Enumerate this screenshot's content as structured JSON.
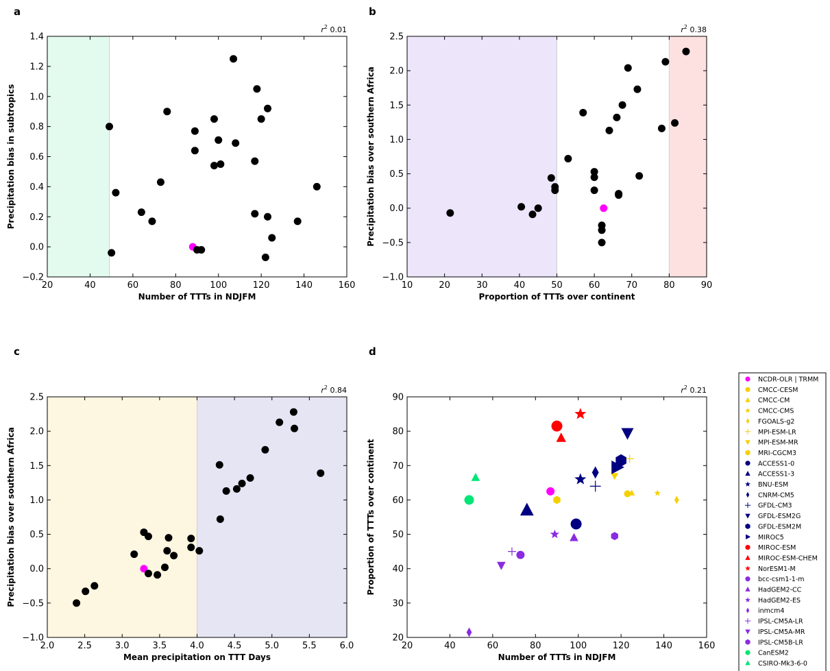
{
  "chart_data": [
    {
      "panel_label": "a",
      "type": "scatter",
      "xlabel": "Number of TTTs in NDJFM",
      "ylabel": "Precipitation bias in subtropics",
      "r2_label": "r",
      "r2_value": "0.01",
      "xlim": [
        20,
        160
      ],
      "ylim": [
        -0.2,
        1.4
      ],
      "xticks": [
        "20",
        "40",
        "60",
        "80",
        "100",
        "120",
        "140",
        "160"
      ],
      "yticks": [
        "−0.2",
        "0.0",
        "0.2",
        "0.4",
        "0.6",
        "0.8",
        "1.0",
        "1.2",
        "1.4"
      ],
      "shaded_regions": [
        {
          "x0": 20,
          "x1": 49,
          "color": "#e3fbef"
        }
      ],
      "points": [
        {
          "x": 88,
          "y": 0.0,
          "color": "#ff00ff"
        },
        {
          "x": 49,
          "y": 0.8
        },
        {
          "x": 50,
          "y": -0.04
        },
        {
          "x": 52,
          "y": 0.36
        },
        {
          "x": 64,
          "y": 0.23
        },
        {
          "x": 69,
          "y": 0.17
        },
        {
          "x": 73,
          "y": 0.43
        },
        {
          "x": 76,
          "y": 0.9
        },
        {
          "x": 89,
          "y": 0.77
        },
        {
          "x": 89,
          "y": 0.64
        },
        {
          "x": 90,
          "y": -0.02
        },
        {
          "x": 92,
          "y": -0.02
        },
        {
          "x": 98,
          "y": 0.85
        },
        {
          "x": 98,
          "y": 0.54
        },
        {
          "x": 100,
          "y": 0.71
        },
        {
          "x": 101,
          "y": 0.55
        },
        {
          "x": 107,
          "y": 1.25
        },
        {
          "x": 108,
          "y": 0.69
        },
        {
          "x": 117,
          "y": 0.57
        },
        {
          "x": 117,
          "y": 0.22
        },
        {
          "x": 118,
          "y": 1.05
        },
        {
          "x": 120,
          "y": 0.85
        },
        {
          "x": 123,
          "y": 0.92
        },
        {
          "x": 122,
          "y": -0.07
        },
        {
          "x": 123,
          "y": 0.2
        },
        {
          "x": 125,
          "y": 0.06
        },
        {
          "x": 137,
          "y": 0.17
        },
        {
          "x": 146,
          "y": 0.4
        }
      ]
    },
    {
      "panel_label": "b",
      "type": "scatter",
      "xlabel": "Proportion of TTTs over continent",
      "ylabel": "Precipitation bias over southern Africa",
      "r2_label": "r",
      "r2_value": "0.38",
      "xlim": [
        10,
        90
      ],
      "ylim": [
        -1.0,
        2.5
      ],
      "xticks": [
        "10",
        "20",
        "30",
        "40",
        "50",
        "60",
        "70",
        "80",
        "90"
      ],
      "yticks": [
        "−1.0",
        "−0.5",
        "0.0",
        "0.5",
        "1.0",
        "1.5",
        "2.0",
        "2.5"
      ],
      "shaded_regions": [
        {
          "x0": 10,
          "x1": 50,
          "color": "#ede5fa"
        },
        {
          "x0": 80,
          "x1": 90,
          "color": "#fde1e1"
        }
      ],
      "points": [
        {
          "x": 62.5,
          "y": 0.0,
          "color": "#ff00ff"
        },
        {
          "x": 21.5,
          "y": -0.07
        },
        {
          "x": 40.5,
          "y": 0.02
        },
        {
          "x": 43.5,
          "y": -0.09
        },
        {
          "x": 45,
          "y": 0.0
        },
        {
          "x": 48.5,
          "y": 0.44
        },
        {
          "x": 49.5,
          "y": 0.31
        },
        {
          "x": 49.5,
          "y": 0.26
        },
        {
          "x": 53,
          "y": 0.72
        },
        {
          "x": 57,
          "y": 1.39
        },
        {
          "x": 60,
          "y": 0.53
        },
        {
          "x": 60,
          "y": 0.45
        },
        {
          "x": 60,
          "y": 0.26
        },
        {
          "x": 62,
          "y": -0.25
        },
        {
          "x": 62,
          "y": -0.32
        },
        {
          "x": 62,
          "y": -0.5
        },
        {
          "x": 64,
          "y": 1.13
        },
        {
          "x": 66,
          "y": 1.32
        },
        {
          "x": 66.5,
          "y": 0.21
        },
        {
          "x": 66.5,
          "y": 0.19
        },
        {
          "x": 67.5,
          "y": 1.5
        },
        {
          "x": 69,
          "y": 2.04
        },
        {
          "x": 71.5,
          "y": 1.73
        },
        {
          "x": 72,
          "y": 0.47
        },
        {
          "x": 78,
          "y": 1.16
        },
        {
          "x": 79,
          "y": 2.13
        },
        {
          "x": 81.5,
          "y": 1.24
        },
        {
          "x": 84.5,
          "y": 2.28
        }
      ]
    },
    {
      "panel_label": "c",
      "type": "scatter",
      "xlabel": "Mean precipitation on TTT Days",
      "ylabel": "Precipitation bias over southern Africa",
      "r2_label": "r",
      "r2_value": "0.84",
      "xlim": [
        2.0,
        6.0
      ],
      "ylim": [
        -1.0,
        2.5
      ],
      "xticks": [
        "2.0",
        "2.5",
        "3.0",
        "3.5",
        "4.0",
        "4.5",
        "5.0",
        "5.5",
        "6.0"
      ],
      "yticks": [
        "−1.0",
        "−0.5",
        "0.0",
        "0.5",
        "1.0",
        "1.5",
        "2.0",
        "2.5"
      ],
      "shaded_regions": [
        {
          "x0": 2.0,
          "x1": 4.0,
          "color": "#fdf6e1"
        },
        {
          "x0": 4.0,
          "x1": 6.0,
          "color": "#e6e5f4"
        }
      ],
      "points": [
        {
          "x": 3.29,
          "y": 0.0,
          "color": "#ff00ff"
        },
        {
          "x": 2.39,
          "y": -0.5
        },
        {
          "x": 2.51,
          "y": -0.33
        },
        {
          "x": 2.63,
          "y": -0.25
        },
        {
          "x": 3.16,
          "y": 0.21
        },
        {
          "x": 3.29,
          "y": 0.53
        },
        {
          "x": 3.35,
          "y": 0.47
        },
        {
          "x": 3.35,
          "y": -0.07
        },
        {
          "x": 3.47,
          "y": -0.09
        },
        {
          "x": 3.57,
          "y": 0.02
        },
        {
          "x": 3.6,
          "y": 0.26
        },
        {
          "x": 3.62,
          "y": 0.45
        },
        {
          "x": 3.69,
          "y": 0.19
        },
        {
          "x": 3.92,
          "y": 0.44
        },
        {
          "x": 3.92,
          "y": 0.31
        },
        {
          "x": 4.03,
          "y": 0.26
        },
        {
          "x": 4.3,
          "y": 1.51
        },
        {
          "x": 4.31,
          "y": 0.72
        },
        {
          "x": 4.39,
          "y": 1.13
        },
        {
          "x": 4.53,
          "y": 1.16
        },
        {
          "x": 4.6,
          "y": 1.24
        },
        {
          "x": 4.71,
          "y": 1.32
        },
        {
          "x": 4.91,
          "y": 1.73
        },
        {
          "x": 5.1,
          "y": 2.13
        },
        {
          "x": 5.29,
          "y": 2.28
        },
        {
          "x": 5.3,
          "y": 2.04
        },
        {
          "x": 5.65,
          "y": 1.39
        }
      ]
    },
    {
      "panel_label": "d",
      "type": "scatter",
      "xlabel": "Number of TTTs in NDJFM",
      "ylabel": "Proportion of TTTs over continent",
      "r2_label": "r",
      "r2_value": "0.21",
      "xlim": [
        20,
        160
      ],
      "ylim": [
        20,
        90
      ],
      "xticks": [
        "20",
        "40",
        "60",
        "80",
        "100",
        "120",
        "140",
        "160"
      ],
      "yticks": [
        "20",
        "30",
        "40",
        "50",
        "60",
        "70",
        "80",
        "90"
      ],
      "points": [
        {
          "name": "NCDR-OLR | TRMM",
          "x": 87,
          "y": 62.5,
          "marker": "circle",
          "color": "#ff00ff",
          "size": 6
        },
        {
          "name": "CMCC-CESM",
          "x": 123,
          "y": 61.8,
          "marker": "circle",
          "color": "#f5d000",
          "size": 5
        },
        {
          "name": "CMCC-CM",
          "x": 125,
          "y": 62.0,
          "marker": "triangle-up",
          "color": "#f5d000",
          "size": 5
        },
        {
          "name": "CMCC-CMS",
          "x": 137,
          "y": 62.0,
          "marker": "star",
          "color": "#f5d000",
          "size": 5
        },
        {
          "name": "FGOALS-g2",
          "x": 146,
          "y": 60.0,
          "marker": "diamond-thin",
          "color": "#f5d000",
          "size": 6
        },
        {
          "name": "MPI-ESM-LR",
          "x": 124,
          "y": 72.0,
          "marker": "plus",
          "color": "#f5d000",
          "size": 6
        },
        {
          "name": "MPI-ESM-MR",
          "x": 117,
          "y": 67.0,
          "marker": "triangle-down",
          "color": "#f5d000",
          "size": 6
        },
        {
          "name": "MRI-CGCM3",
          "x": 90,
          "y": 60.0,
          "marker": "hexagon",
          "color": "#f5d000",
          "size": 6
        },
        {
          "name": "ACCESS1-0",
          "x": 99,
          "y": 53.0,
          "marker": "circle",
          "color": "#000080",
          "size": 8
        },
        {
          "name": "ACCESS1-3",
          "x": 76,
          "y": 57.0,
          "marker": "triangle-up",
          "color": "#000080",
          "size": 11
        },
        {
          "name": "BNU-ESM",
          "x": 101,
          "y": 66.0,
          "marker": "star",
          "color": "#000080",
          "size": 9
        },
        {
          "name": "CNRM-CM5",
          "x": 108,
          "y": 68.0,
          "marker": "diamond-thin",
          "color": "#000080",
          "size": 9
        },
        {
          "name": "GFDL-CM3",
          "x": 108,
          "y": 64.0,
          "marker": "plus",
          "color": "#000080",
          "size": 8
        },
        {
          "name": "GFDL-ESM2G",
          "x": 123,
          "y": 79.5,
          "marker": "triangle-down",
          "color": "#000080",
          "size": 10
        },
        {
          "name": "GFDL-ESM2M",
          "x": 120,
          "y": 71.5,
          "marker": "hexagon",
          "color": "#000080",
          "size": 9
        },
        {
          "name": "MIROC5",
          "x": 118,
          "y": 69.5,
          "marker": "triangle-right",
          "color": "#000080",
          "size": 11
        },
        {
          "name": "MIROC-ESM",
          "x": 90,
          "y": 81.5,
          "marker": "circle",
          "color": "#ff0000",
          "size": 8
        },
        {
          "name": "MIROC-ESM-CHEM",
          "x": 92,
          "y": 78.0,
          "marker": "triangle-up",
          "color": "#ff0000",
          "size": 8
        },
        {
          "name": "NorESM1-M",
          "x": 101,
          "y": 85.0,
          "marker": "star",
          "color": "#ff0000",
          "size": 9
        },
        {
          "name": "bcc-csm1-1-m",
          "x": 73,
          "y": 44.0,
          "marker": "circle",
          "color": "#8a2be2",
          "size": 6
        },
        {
          "name": "HadGEM2-CC",
          "x": 98,
          "y": 49.0,
          "marker": "triangle-up",
          "color": "#8a2be2",
          "size": 7
        },
        {
          "name": "HadGEM2-ES",
          "x": 89,
          "y": 50.0,
          "marker": "star",
          "color": "#8a2be2",
          "size": 7
        },
        {
          "name": "inmcm4",
          "x": 49,
          "y": 21.5,
          "marker": "diamond-thin",
          "color": "#8a2be2",
          "size": 7
        },
        {
          "name": "IPSL-CM5A-LR",
          "x": 69,
          "y": 45.0,
          "marker": "plus",
          "color": "#8a2be2",
          "size": 6
        },
        {
          "name": "IPSL-CM5A-MR",
          "x": 64,
          "y": 41.0,
          "marker": "triangle-down",
          "color": "#8a2be2",
          "size": 7
        },
        {
          "name": "IPSL-CM5B-LR",
          "x": 117,
          "y": 49.5,
          "marker": "hexagon",
          "color": "#8a2be2",
          "size": 6
        },
        {
          "name": "CanESM2",
          "x": 49,
          "y": 60.0,
          "marker": "circle",
          "color": "#00e676",
          "size": 7
        },
        {
          "name": "CSIRO-Mk3-6-0",
          "x": 52,
          "y": 66.5,
          "marker": "triangle-up",
          "color": "#00e676",
          "size": 7
        }
      ]
    }
  ]
}
